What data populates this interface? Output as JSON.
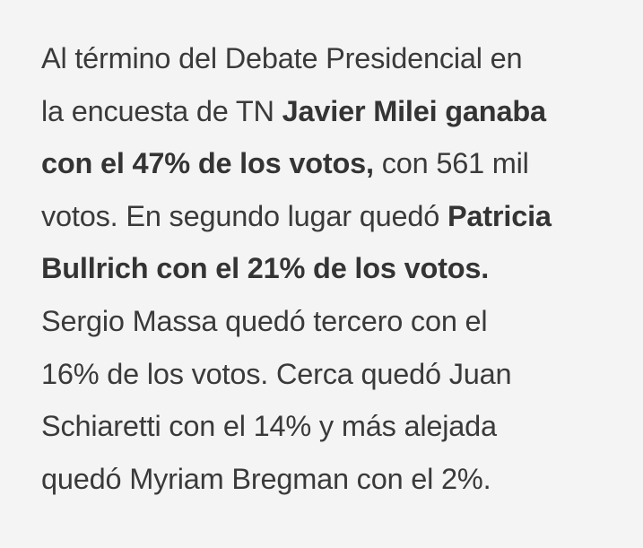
{
  "article": {
    "lines": [
      [
        {
          "text": "Al término del Debate Presidencial en",
          "bold": false
        }
      ],
      [
        {
          "text": "la encuesta de TN ",
          "bold": false
        },
        {
          "text": "Javier Milei ganaba",
          "bold": true
        }
      ],
      [
        {
          "text": "con el 47% de los votos,",
          "bold": true
        },
        {
          "text": " con 561 mil",
          "bold": false
        }
      ],
      [
        {
          "text": "votos. En segundo lugar quedó ",
          "bold": false
        },
        {
          "text": "Patricia",
          "bold": true
        }
      ],
      [
        {
          "text": "Bullrich con el 21% de los votos.",
          "bold": true
        }
      ],
      [
        {
          "text": "Sergio Massa quedó tercero con el",
          "bold": false
        }
      ],
      [
        {
          "text": "16% de los votos. Cerca quedó Juan",
          "bold": false
        }
      ],
      [
        {
          "text": "Schiaretti con el 14% y más alejada",
          "bold": false
        }
      ],
      [
        {
          "text": "quedó Myriam Bregman con el 2%.",
          "bold": false
        }
      ]
    ]
  }
}
